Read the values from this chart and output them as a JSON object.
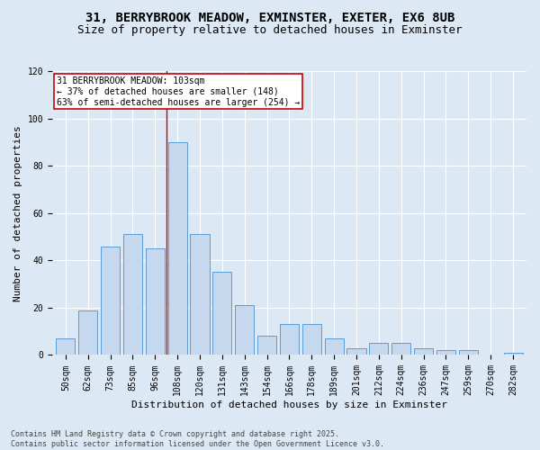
{
  "title_line1": "31, BERRYBROOK MEADOW, EXMINSTER, EXETER, EX6 8UB",
  "title_line2": "Size of property relative to detached houses in Exminster",
  "xlabel": "Distribution of detached houses by size in Exminster",
  "ylabel": "Number of detached properties",
  "categories": [
    "50sqm",
    "62sqm",
    "73sqm",
    "85sqm",
    "96sqm",
    "108sqm",
    "120sqm",
    "131sqm",
    "143sqm",
    "154sqm",
    "166sqm",
    "178sqm",
    "189sqm",
    "201sqm",
    "212sqm",
    "224sqm",
    "236sqm",
    "247sqm",
    "259sqm",
    "270sqm",
    "282sqm"
  ],
  "values": [
    7,
    19,
    46,
    51,
    45,
    90,
    51,
    35,
    21,
    8,
    13,
    13,
    7,
    3,
    5,
    5,
    3,
    2,
    2,
    0,
    1
  ],
  "bar_color": "#c5d8ed",
  "bar_edge_color": "#5b9bd5",
  "background_color": "#dce9f5",
  "grid_color": "#ffffff",
  "annotation_text": "31 BERRYBROOK MEADOW: 103sqm\n← 37% of detached houses are smaller (148)\n63% of semi-detached houses are larger (254) →",
  "annotation_box_color": "#ffffff",
  "annotation_box_edge_color": "#cc0000",
  "vline_color": "#cc0000",
  "ylim": [
    0,
    120
  ],
  "yticks": [
    0,
    20,
    40,
    60,
    80,
    100,
    120
  ],
  "footer_line1": "Contains HM Land Registry data © Crown copyright and database right 2025.",
  "footer_line2": "Contains public sector information licensed under the Open Government Licence v3.0.",
  "title_fontsize": 10,
  "title2_fontsize": 9,
  "axis_label_fontsize": 8,
  "tick_fontsize": 7,
  "annotation_fontsize": 7,
  "footer_fontsize": 6
}
